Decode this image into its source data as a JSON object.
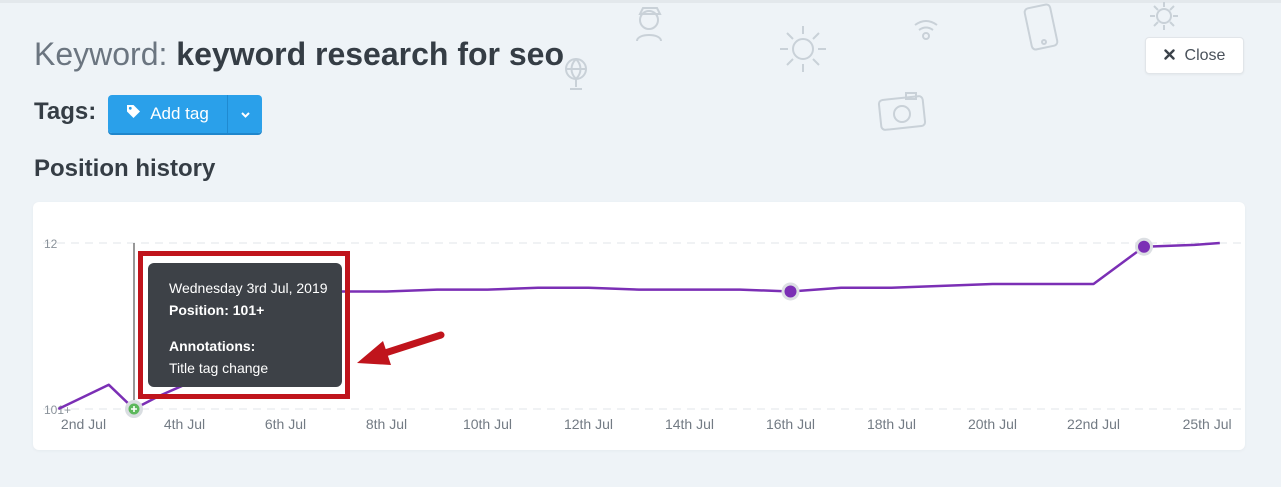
{
  "header": {
    "keyword_label": "Keyword:",
    "keyword_value": "keyword research for seo",
    "close_label": "Close"
  },
  "tags": {
    "label": "Tags:",
    "add_tag_label": "Add tag"
  },
  "section_title": "Position history",
  "tooltip": {
    "date": "Wednesday 3rd Jul, 2019",
    "position": "Position: 101+",
    "annotations_heading": "Annotations:",
    "annotation_text": "Title tag change"
  },
  "colors": {
    "line": "#7b2fb5",
    "accent_button": "#2aa0ea",
    "highlight": "#c0141c",
    "annotation_marker": "#5cb85c"
  },
  "chart_data": {
    "type": "line",
    "y_tick_labels": [
      "12",
      "101+"
    ],
    "x_tick_labels": [
      "2nd Jul",
      "4th Jul",
      "6th Jul",
      "8th Jul",
      "10th Jul",
      "12th Jul",
      "14th Jul",
      "16th Jul",
      "18th Jul",
      "20th Jul",
      "22nd Jul",
      "25th Jul"
    ],
    "x_tick_days": [
      2,
      4,
      6,
      8,
      10,
      12,
      14,
      16,
      18,
      20,
      22,
      24.25
    ],
    "y_scale": "rank, inverted (12 at top, 101+ at bottom)",
    "ylim": [
      12,
      101
    ],
    "series": [
      {
        "x": [
          1.5,
          2.5,
          3,
          3.5,
          4,
          5,
          6,
          7,
          8,
          9,
          10,
          11,
          12,
          13,
          14,
          15,
          16,
          17,
          18,
          19,
          20,
          21,
          22,
          23,
          24,
          24.5
        ],
        "y": [
          101,
          88,
          101,
          94,
          88,
          78,
          68,
          38,
          38,
          37,
          37,
          36,
          36,
          37,
          37,
          37,
          38,
          36,
          36,
          35,
          34,
          34,
          34,
          14,
          13,
          12
        ]
      }
    ],
    "markers": [
      {
        "x": 3,
        "y": 101,
        "kind": "annotation"
      },
      {
        "x": 16,
        "y": 38,
        "kind": "point"
      },
      {
        "x": 23,
        "y": 14,
        "kind": "point"
      }
    ],
    "grid": "horizontal dashed",
    "legend": "none"
  }
}
